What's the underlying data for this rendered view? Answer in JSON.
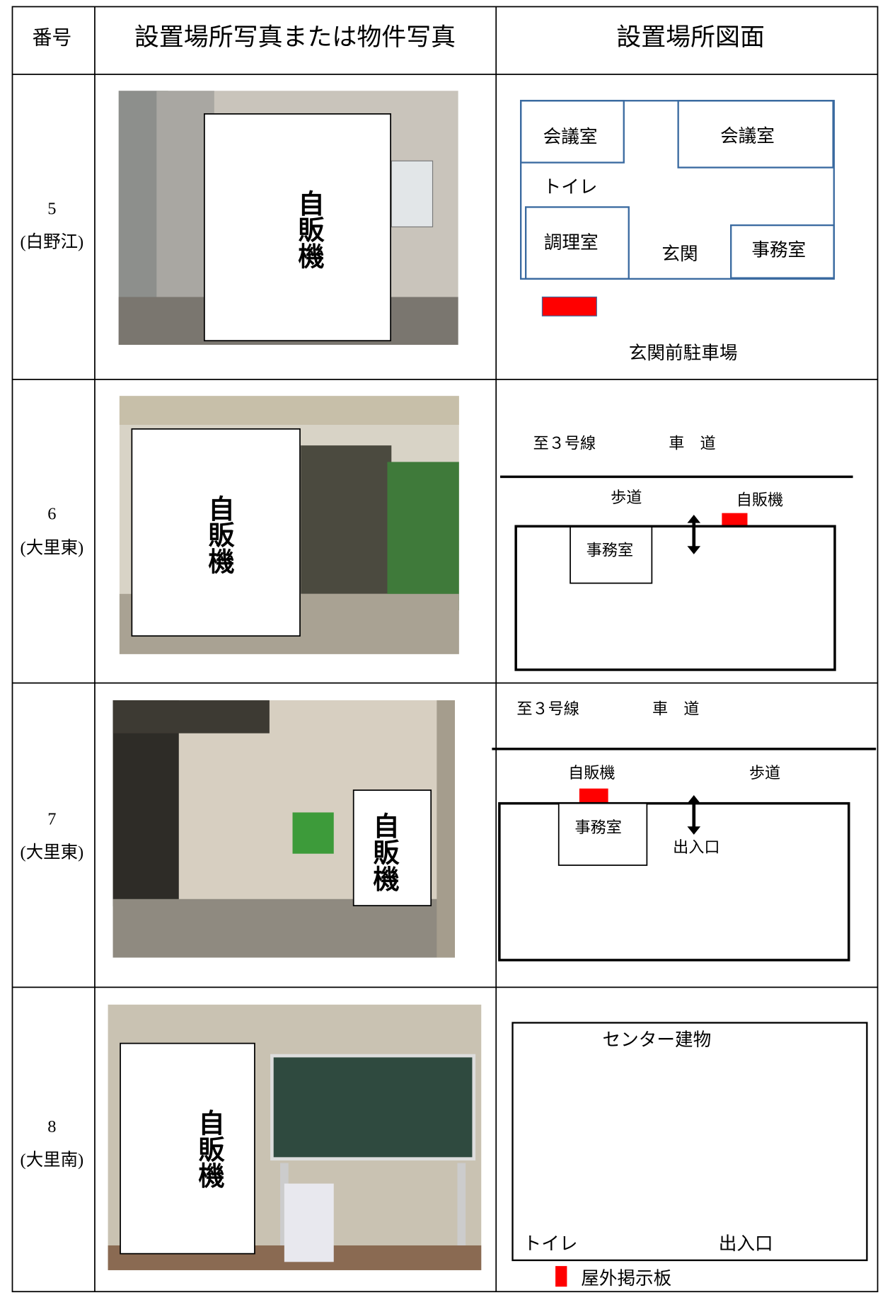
{
  "table": {
    "headers": [
      "番号",
      "設置場所写真または物件写真",
      "設置場所図面"
    ],
    "rows": [
      {
        "number": "5",
        "area": "(白野江)",
        "photo_label": "自販機",
        "plan": {
          "room_a": "会議室",
          "room_b": "会議室",
          "toilet": "トイレ",
          "kitchen": "調理室",
          "entrance": "玄関",
          "office": "事務室",
          "parking": "玄関前駐車場"
        }
      },
      {
        "number": "6",
        "area": "(大里東)",
        "photo_label": "自販機",
        "plan": {
          "direction": "至３号線",
          "road": "車　道",
          "sidewalk": "歩道",
          "vending": "自販機",
          "office": "事務室"
        }
      },
      {
        "number": "7",
        "area": "(大里東)",
        "photo_label": "自販機",
        "plan": {
          "direction": "至３号線",
          "road": "車　道",
          "vending": "自販機",
          "sidewalk": "歩道",
          "office": "事務室",
          "entrance": "出入口"
        }
      },
      {
        "number": "8",
        "area": "(大里南)",
        "photo_label": "自販機",
        "plan": {
          "building": "センター建物",
          "toilet": "トイレ",
          "entrance": "出入口",
          "board": "屋外掲示板"
        }
      }
    ]
  }
}
